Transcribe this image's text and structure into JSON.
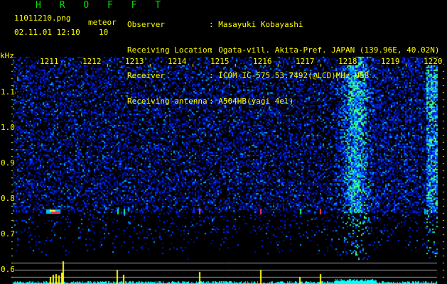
{
  "header": {
    "app_title": "H R O F F T",
    "filename": "11011210.png",
    "datetime": "02.11.01 12:10",
    "meteor_label": "meteor",
    "meteor_count": "10",
    "info": [
      {
        "label": "Observer",
        "value": ": Masayuki Kobayashi"
      },
      {
        "label": "Receiving Location",
        "value": ": Ogata-vill. Akita-Pref. JAPAN (139.96E, 40.02N)"
      },
      {
        "label": "Receiver",
        "value": ": ICOM IC-575 53.7492(@LCD)MHz USB"
      },
      {
        "label": "Receiving antenna",
        "value": ": A504HB(yagi 4el)"
      }
    ]
  },
  "chart_data": {
    "type": "heatmap",
    "ylabel": "kHz",
    "x_ticks": [
      "1211",
      "1212",
      "1213",
      "1214",
      "1215",
      "1216",
      "1217",
      "1218",
      "1219",
      "1220"
    ],
    "y_ticks": [
      "1.1",
      "1.0",
      "0.9",
      "0.8",
      "0.7",
      "0.6"
    ],
    "ylim": [
      0.56,
      1.2
    ],
    "colors": {
      "background": "#000000",
      "noise": "#0010c0",
      "signal": "#00ff80",
      "histogram": "#00ffff",
      "meteor_bar": "#ffff00",
      "text": "#ffff00",
      "title": "#00e000"
    },
    "meteor_echo_frequency_khz": 0.76
  }
}
